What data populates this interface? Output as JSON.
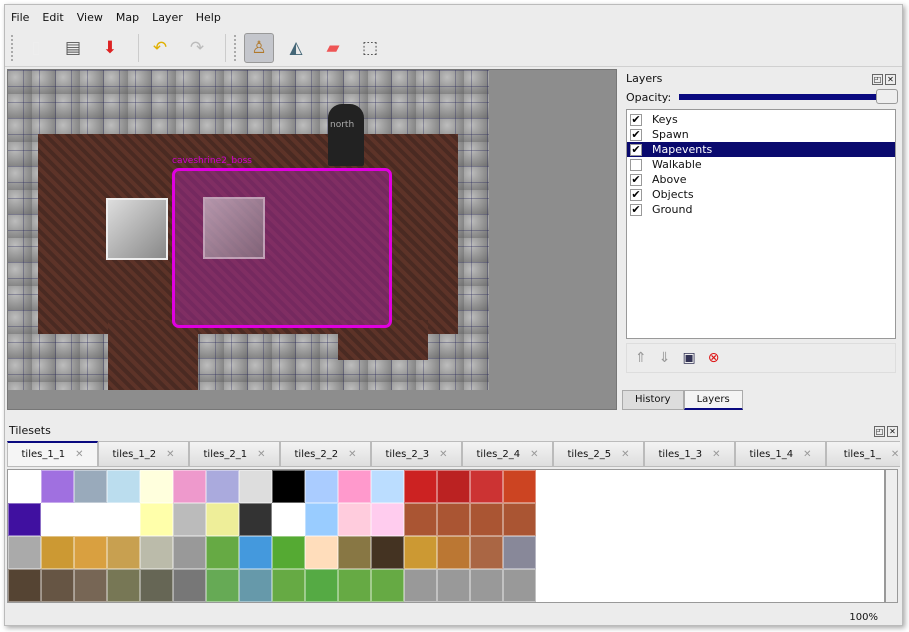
{
  "menu": [
    "File",
    "Edit",
    "View",
    "Map",
    "Layer",
    "Help"
  ],
  "toolbar": [
    {
      "icon": "new-file-icon",
      "g": "📄"
    },
    {
      "icon": "open-icon",
      "g": "🗂"
    },
    {
      "icon": "save-icon",
      "g": "📥"
    },
    {
      "icon": "undo-icon",
      "g": "↶"
    },
    {
      "icon": "redo-icon",
      "g": "↷"
    },
    {
      "icon": "stamp-brush-icon",
      "g": "♙"
    },
    {
      "icon": "bucket-fill-icon",
      "g": "🪣"
    },
    {
      "icon": "eraser-icon",
      "g": "▰"
    },
    {
      "icon": "rect-select-icon",
      "g": "⬚"
    }
  ],
  "map": {
    "object_labels": [
      "caveshrine2_boss",
      "north"
    ]
  },
  "layers_panel": {
    "title": "Layers",
    "opacity_label": "Opacity:",
    "opacity": 1.0,
    "layers": [
      {
        "name": "Keys",
        "visible": true
      },
      {
        "name": "Spawn",
        "visible": true
      },
      {
        "name": "Mapevents",
        "visible": true,
        "selected": true
      },
      {
        "name": "Walkable",
        "visible": false
      },
      {
        "name": "Above",
        "visible": true
      },
      {
        "name": "Objects",
        "visible": true
      },
      {
        "name": "Ground",
        "visible": true
      }
    ],
    "tabs": [
      "History",
      "Layers"
    ]
  },
  "tilesets": {
    "title": "Tilesets",
    "tabs": [
      "tiles_1_1",
      "tiles_1_2",
      "tiles_2_1",
      "tiles_2_2",
      "tiles_2_3",
      "tiles_2_4",
      "tiles_2_5",
      "tiles_1_3",
      "tiles_1_4",
      "tiles_1_"
    ]
  },
  "status": {
    "zoom": "100%"
  }
}
